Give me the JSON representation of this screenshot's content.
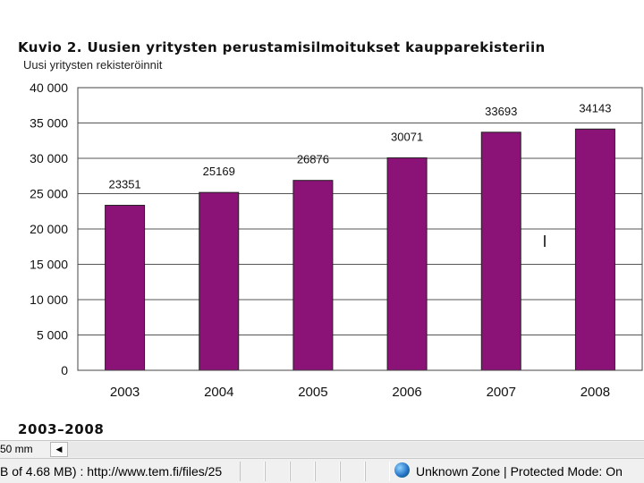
{
  "slide": {
    "title": "Kuvio 2. Uusien yritysten perustamisilmoitukset kaupparekisteriin",
    "subtitle": "Uusi yritysten rekisteröinnit",
    "period": "2003–2008"
  },
  "colors": {
    "bar": "#8b1276",
    "grid": "#555555",
    "background": "#ffffff"
  },
  "chart_data": {
    "type": "bar",
    "categories": [
      "2003",
      "2004",
      "2005",
      "2006",
      "2007",
      "2008"
    ],
    "values": [
      23351,
      25169,
      26876,
      30071,
      33693,
      34143
    ],
    "data_labels": [
      "23351",
      "25169",
      "26876",
      "30071",
      "33693",
      "34143"
    ],
    "y_ticks": [
      0,
      5000,
      10000,
      15000,
      20000,
      25000,
      30000,
      35000,
      40000
    ],
    "y_tick_labels": [
      "0",
      "5 000",
      "10 000",
      "15 000",
      "20 000",
      "25 000",
      "30 000",
      "35 000",
      "40 000"
    ],
    "ylim": [
      0,
      40000
    ],
    "grid": true,
    "legend": "none",
    "title": "Kuvio 2. Uusien yritysten perustamisilmoitukset kaupparekisteriin",
    "ylabel": "Uusi yritysten rekisteröinnit",
    "xlabel": ""
  },
  "browser": {
    "zoom_text": "50 mm",
    "status_text": "B of 4.68 MB) : http://www.tem.fi/files/25",
    "zone_text": "Unknown Zone | Protected Mode: On"
  }
}
